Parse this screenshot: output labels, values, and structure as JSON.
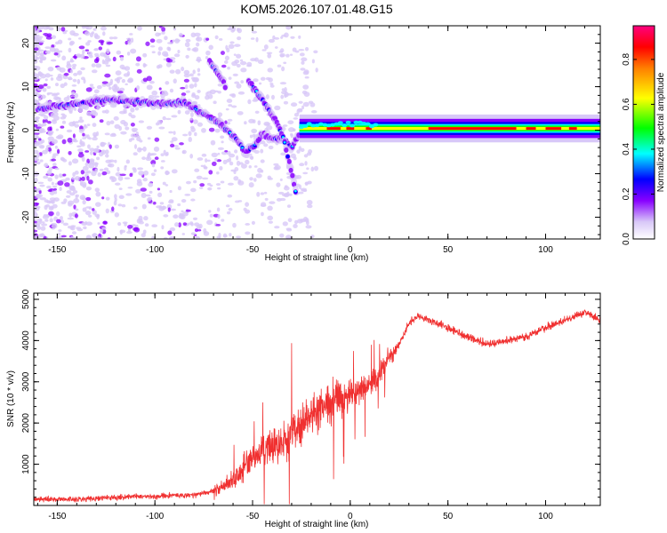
{
  "title": "KOM5.2026.107.01.48.G15",
  "colors": {
    "snr_line": "#f03030",
    "axis": "#000000",
    "cmap": [
      "#ffffff",
      "#d8c8f8",
      "#8800ff",
      "#0000ff",
      "#00ffff",
      "#00ff00",
      "#ffff00",
      "#ff8000",
      "#ff0000",
      "#ff0080"
    ]
  },
  "chart_data": [
    {
      "type": "heatmap",
      "name": "spectrogram",
      "xlabel": "Height of straight line (km)",
      "ylabel": "Frequency (Hz)",
      "xlim": [
        -162,
        128
      ],
      "ylim": [
        -25,
        24
      ],
      "xticks": [
        -150,
        -100,
        -50,
        0,
        50,
        100
      ],
      "xtick_labels": [
        "-150",
        "-100",
        "-50",
        "0",
        "50",
        "100"
      ],
      "yticks": [
        -20,
        -10,
        0,
        10,
        20
      ],
      "ytick_labels": [
        "-20",
        "-10",
        "0",
        "10",
        "20"
      ],
      "colorbar": {
        "label": "Normalized spectral amplitude",
        "range": [
          0,
          0.95
        ],
        "ticks": [
          0,
          0.2,
          0.4,
          0.6,
          0.8
        ],
        "tick_labels": [
          "0.0",
          "0.2",
          "0.4",
          "0.6",
          "0.8"
        ]
      },
      "traces": [
        {
          "name": "main-doppler-trace",
          "points": [
            [
              -160,
              5
            ],
            [
              -140,
              6
            ],
            [
              -125,
              7
            ],
            [
              -110,
              6.5
            ],
            [
              -95,
              6
            ],
            [
              -85,
              6.5
            ],
            [
              -78,
              4.5
            ],
            [
              -70,
              2.5
            ],
            [
              -63,
              0
            ],
            [
              -58,
              -2
            ],
            [
              -54,
              -5
            ],
            [
              -50,
              -4
            ],
            [
              -45,
              -1
            ],
            [
              -40,
              -2
            ],
            [
              -35,
              -2
            ],
            [
              -30,
              -4
            ],
            [
              -25,
              0
            ],
            [
              -15,
              0.5
            ],
            [
              0,
              1
            ],
            [
              20,
              0
            ],
            [
              60,
              0
            ],
            [
              100,
              0
            ],
            [
              128,
              0.5
            ]
          ]
        },
        {
          "name": "secondary-trace",
          "points": [
            [
              -52,
              11
            ],
            [
              -48,
              9
            ],
            [
              -42,
              5
            ],
            [
              -38,
              2
            ],
            [
              -34,
              -2
            ],
            [
              -30,
              -10
            ],
            [
              -28,
              -14
            ]
          ]
        },
        {
          "name": "upper-trace",
          "points": [
            [
              -72,
              16
            ],
            [
              -68,
              13
            ],
            [
              -64,
              10
            ]
          ]
        }
      ]
    },
    {
      "type": "line",
      "name": "snr",
      "xlabel": "Height of straight line (km)",
      "ylabel": "SNR (10 * v/v)",
      "xlim": [
        -162,
        128
      ],
      "ylim": [
        0,
        5150
      ],
      "xticks": [
        -150,
        -100,
        -50,
        0,
        50,
        100
      ],
      "xtick_labels": [
        "-150",
        "-100",
        "-50",
        "0",
        "50",
        "100"
      ],
      "yticks": [
        1000,
        2000,
        3000,
        4000,
        5000
      ],
      "ytick_labels": [
        "1000",
        "2000",
        "3000",
        "4000",
        "5000"
      ],
      "series": [
        {
          "name": "snr-mean",
          "x": [
            -162,
            -140,
            -120,
            -100,
            -80,
            -70,
            -65,
            -60,
            -55,
            -50,
            -45,
            -40,
            -35,
            -30,
            -25,
            -20,
            -15,
            -10,
            -5,
            0,
            5,
            10,
            15,
            20,
            25,
            30,
            35,
            40,
            50,
            60,
            70,
            80,
            90,
            100,
            110,
            120,
            128
          ],
          "values": [
            150,
            150,
            200,
            220,
            260,
            350,
            450,
            600,
            900,
            1100,
            1300,
            1450,
            1500,
            1800,
            2000,
            2200,
            2300,
            2500,
            2600,
            2700,
            2800,
            2900,
            3200,
            3600,
            3900,
            4400,
            4600,
            4500,
            4300,
            4100,
            3900,
            4000,
            4100,
            4300,
            4500,
            4700,
            4500
          ]
        }
      ]
    }
  ]
}
